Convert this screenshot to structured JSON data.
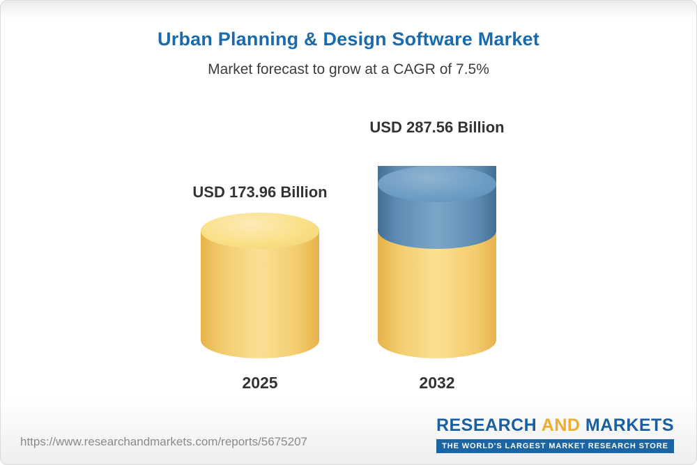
{
  "chart_data": {
    "type": "bar",
    "bar_style": "cylinder-3d",
    "title": "Urban Planning & Design Software Market",
    "subtitle": "Market forecast to grow at a CAGR of 7.5%",
    "cagr_percent": 7.5,
    "unit": "USD Billion",
    "categories": [
      "2025",
      "2032"
    ],
    "values": [
      173.96,
      287.56
    ],
    "value_labels": [
      "USD 173.96 Billion",
      "USD 287.56 Billion"
    ],
    "ylim": [
      0,
      287.56
    ],
    "legend_position": "none",
    "grid": false,
    "colors": {
      "base_bar": "#f2cb6c",
      "growth_segment": "#5e90b7",
      "title_text": "#1a6aad",
      "label_text": "#333333"
    }
  },
  "footer": {
    "url": "https://www.researchandmarkets.com/reports/5675207",
    "logo": {
      "word1": "RESEARCH",
      "word2": "AND",
      "word3": "MARKETS",
      "tagline": "THE WORLD'S LARGEST MARKET RESEARCH STORE"
    }
  }
}
